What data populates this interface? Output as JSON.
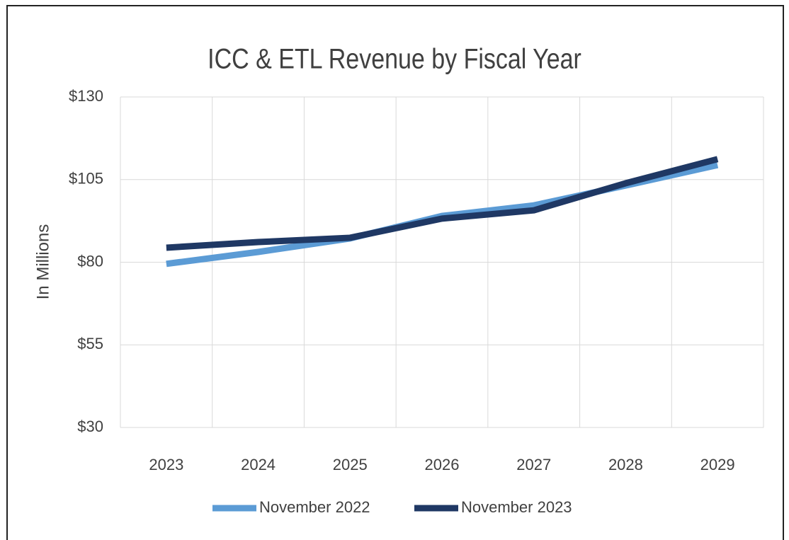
{
  "chart_data": {
    "type": "line",
    "title": "ICC & ETL Revenue by Fiscal Year",
    "y_label": "In Millions",
    "categories": [
      "2023",
      "2024",
      "2025",
      "2026",
      "2027",
      "2028",
      "2029"
    ],
    "series": [
      {
        "name": "November 2022",
        "color": "#5b9bd5",
        "values": [
          79.5,
          83.1,
          87.2,
          94.0,
          97.2,
          103.2,
          109.4
        ]
      },
      {
        "name": "November 2023",
        "color": "#1f3864",
        "values": [
          84.4,
          86.1,
          87.4,
          93.2,
          95.7,
          103.9,
          111.2
        ]
      }
    ],
    "ylim": [
      30,
      130
    ],
    "yticks": [
      {
        "value": 30,
        "label": "$30"
      },
      {
        "value": 55,
        "label": "$55"
      },
      {
        "value": 80,
        "label": "$80"
      },
      {
        "value": 105,
        "label": "$105"
      },
      {
        "value": 130,
        "label": "$130"
      }
    ],
    "grid": true,
    "legend": "bottom"
  }
}
